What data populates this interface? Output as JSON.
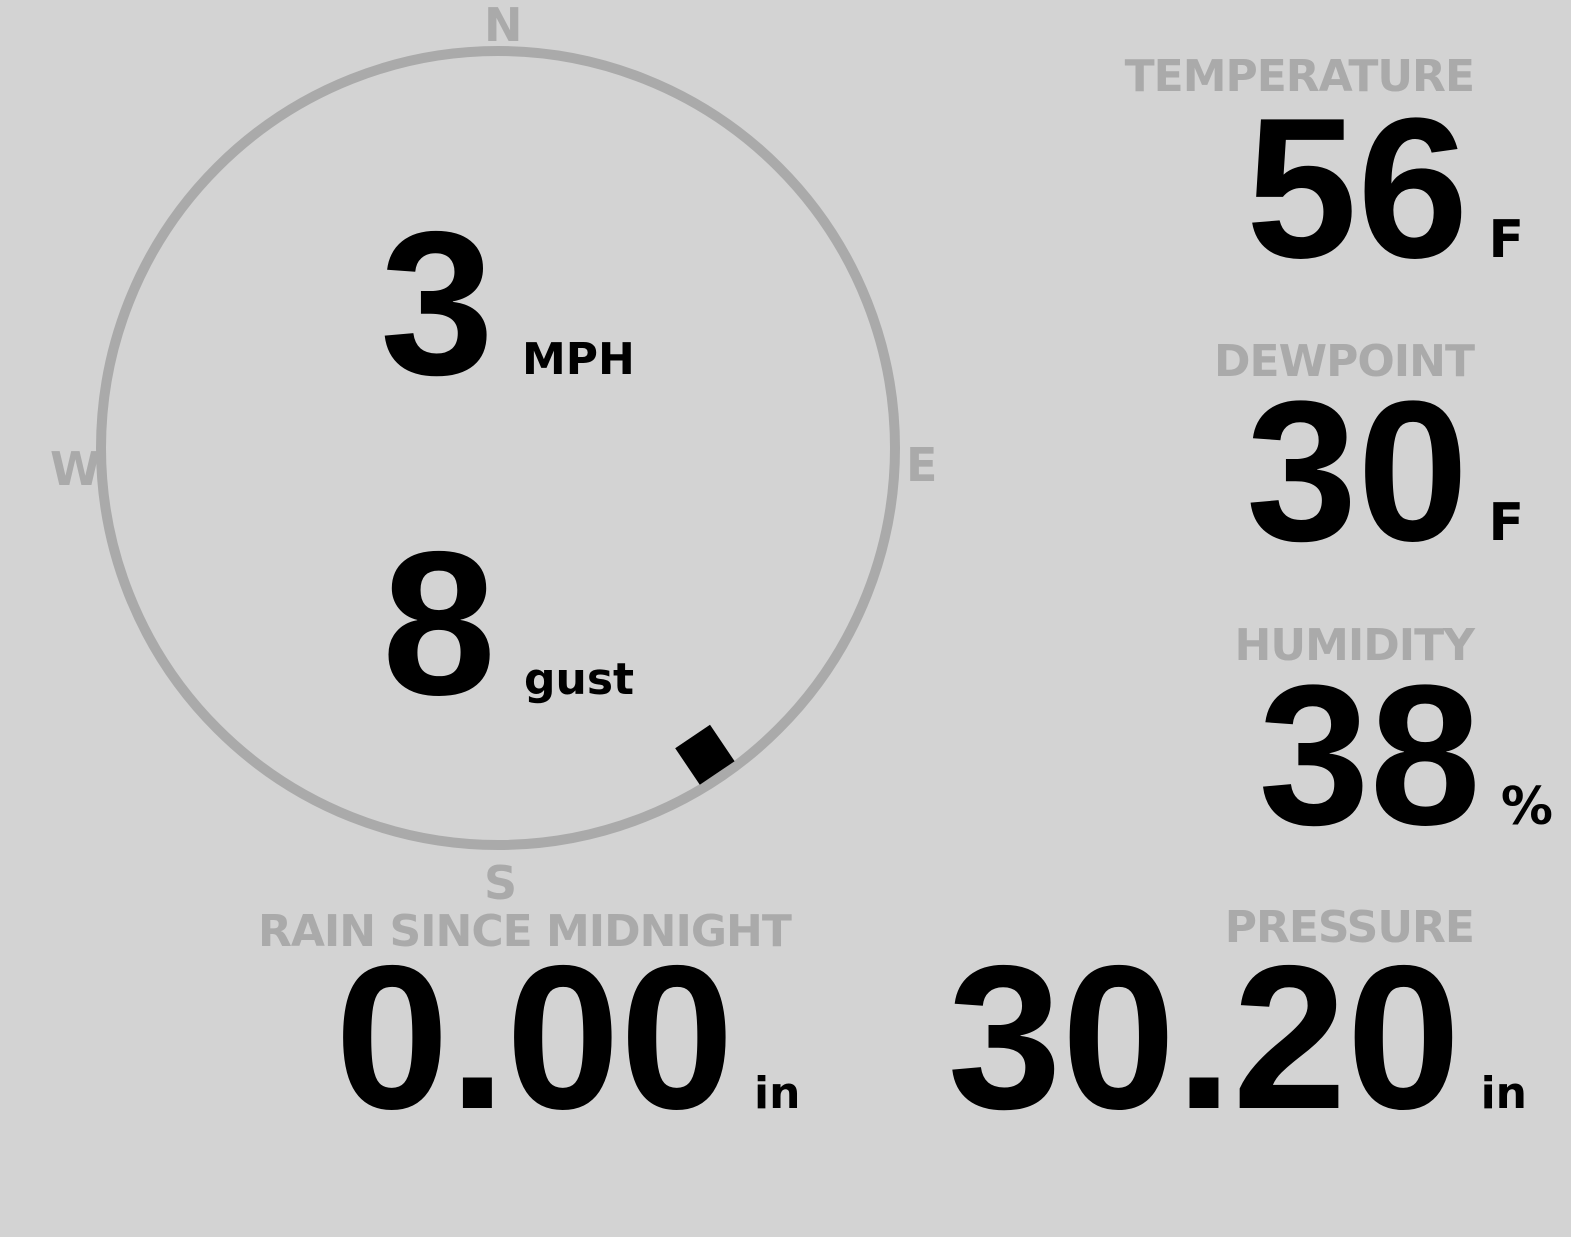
{
  "colors": {
    "background": "#d3d3d3",
    "label": "#aaaaaa",
    "value": "#000000"
  },
  "wind": {
    "compass": {
      "north": "N",
      "east": "E",
      "south": "S",
      "west": "W"
    },
    "speed": "3",
    "speed_unit": "MPH",
    "gust": "8",
    "gust_label": "gust",
    "direction_degrees": 146
  },
  "temperature": {
    "label": "TEMPERATURE",
    "value": "56",
    "unit": "F"
  },
  "dewpoint": {
    "label": "DEWPOINT",
    "value": "30",
    "unit": "F"
  },
  "humidity": {
    "label": "HUMIDITY",
    "value": "38",
    "unit": "%"
  },
  "rain": {
    "label": "RAIN SINCE MIDNIGHT",
    "value": "0.00",
    "unit": "in"
  },
  "pressure": {
    "label": "PRESSURE",
    "value": "30.20",
    "unit": "in"
  }
}
